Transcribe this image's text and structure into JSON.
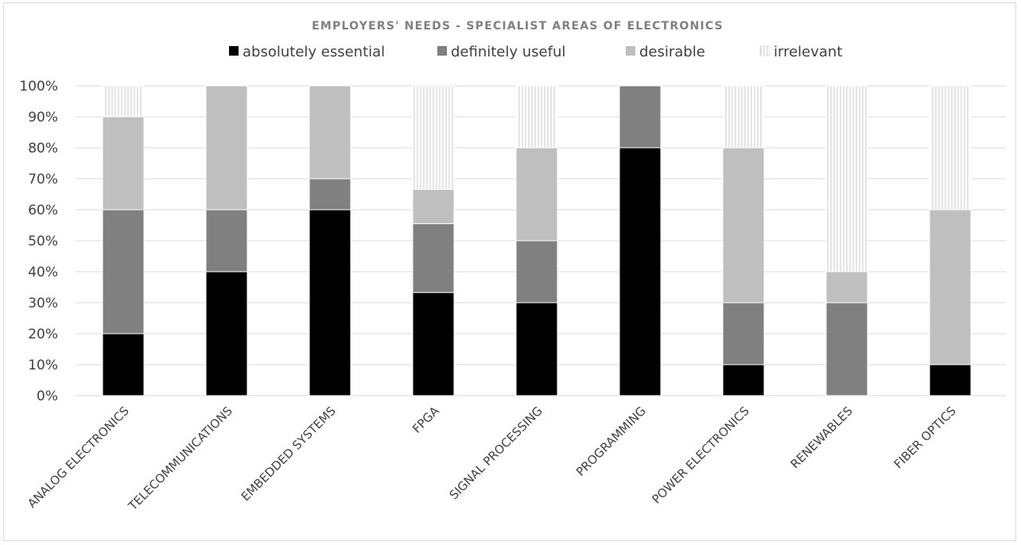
{
  "chart_data": {
    "type": "bar",
    "stacked": true,
    "percent_stacked": true,
    "title": "EMPLOYERS' NEEDS - SPECIALIST AREAS OF ELECTRONICS",
    "xlabel": "",
    "ylabel": "",
    "ylim": [
      0,
      100
    ],
    "y_ticks": [
      "0%",
      "10%",
      "20%",
      "30%",
      "40%",
      "50%",
      "60%",
      "70%",
      "80%",
      "90%",
      "100%"
    ],
    "grid": true,
    "legend_position": "top",
    "categories": [
      "ANALOG ELECTRONICS",
      "TELECOMMUNICATIONS",
      "EMBEDDED SYSTEMS",
      "FPGA",
      "SIGNAL PROCESSING",
      "PROGRAMMING",
      "POWER ELECTRONICS",
      "RENEWABLES",
      "FIBER OPTICS"
    ],
    "series": [
      {
        "name": "absolutely essential",
        "color": "#000000",
        "values": [
          20,
          40,
          60,
          33.3,
          30,
          80,
          10,
          0,
          10
        ]
      },
      {
        "name": "definitely useful",
        "color": "#808080",
        "values": [
          40,
          20,
          10,
          22.2,
          20,
          20,
          20,
          30,
          0
        ]
      },
      {
        "name": "desirable",
        "color": "#bfbfbf",
        "values": [
          30,
          40,
          30,
          11.1,
          30,
          0,
          50,
          10,
          50
        ]
      },
      {
        "name": "irrelevant",
        "color": "hatched",
        "values": [
          10,
          0,
          0,
          33.3,
          20,
          0,
          20,
          60,
          40
        ]
      }
    ]
  }
}
